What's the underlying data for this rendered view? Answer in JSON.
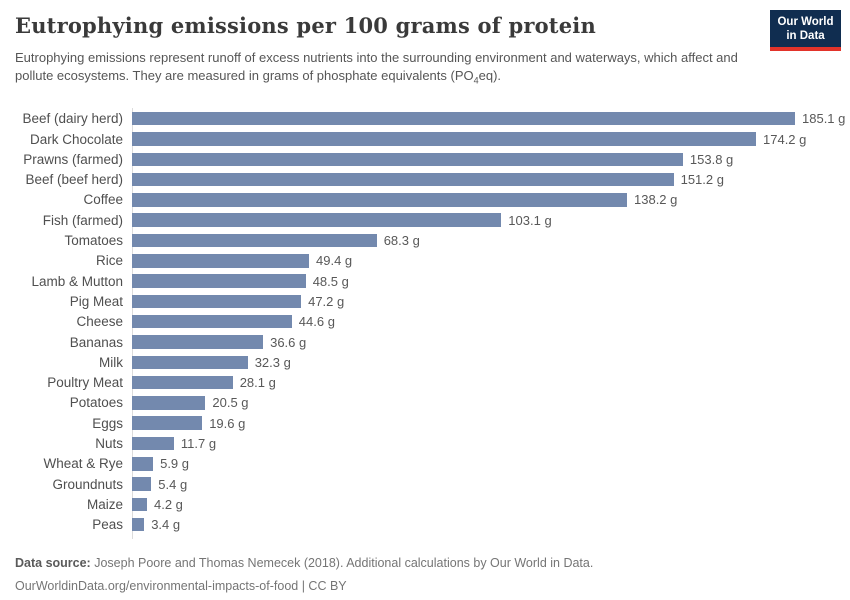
{
  "header": {
    "title": "Eutrophying emissions per 100 grams of protein",
    "subtitle_parts": {
      "pre": "Eutrophying emissions represent runoff of excess nutrients into the surrounding environment and waterways, which affect and pollute ecosystems. They are measured in grams of phosphate equivalents (PO",
      "sub": "4",
      "post": "eq)."
    },
    "logo": {
      "line1": "Our World",
      "line2": "in Data"
    }
  },
  "chart_data": {
    "type": "bar",
    "orientation": "horizontal",
    "title": "Eutrophying emissions per 100 grams of protein",
    "unit": "g",
    "categories": [
      "Beef (dairy herd)",
      "Dark Chocolate",
      "Prawns (farmed)",
      "Beef (beef herd)",
      "Coffee",
      "Fish (farmed)",
      "Tomatoes",
      "Rice",
      "Lamb & Mutton",
      "Pig Meat",
      "Cheese",
      "Bananas",
      "Milk",
      "Poultry Meat",
      "Potatoes",
      "Eggs",
      "Nuts",
      "Wheat & Rye",
      "Groundnuts",
      "Maize",
      "Peas"
    ],
    "values": [
      185.1,
      174.2,
      153.8,
      151.2,
      138.2,
      103.1,
      68.3,
      49.4,
      48.5,
      47.2,
      44.6,
      36.6,
      32.3,
      28.1,
      20.5,
      19.6,
      11.7,
      5.9,
      5.4,
      4.2,
      3.4
    ],
    "value_labels": [
      "185.1 g",
      "174.2 g",
      "153.8 g",
      "151.2 g",
      "138.2 g",
      "103.1 g",
      "68.3 g",
      "49.4 g",
      "48.5 g",
      "47.2 g",
      "44.6 g",
      "36.6 g",
      "32.3 g",
      "28.1 g",
      "20.5 g",
      "19.6 g",
      "11.7 g",
      "5.9 g",
      "5.4 g",
      "4.2 g",
      "3.4 g"
    ],
    "xlim": [
      0,
      185.1
    ],
    "grid": false,
    "legend": "none",
    "bar_color": "#7389ae"
  },
  "footer": {
    "source_label": "Data source:",
    "source_text": " Joseph Poore and Thomas Nemecek (2018). Additional calculations by Our World in Data.",
    "credit_line": "OurWorldinData.org/environmental-impacts-of-food | CC BY"
  },
  "colors": {
    "bar": "#7389ae",
    "axis_line": "#dcdcdc",
    "title_text": "#3a3a3a",
    "subtitle_text": "#565656",
    "label_text": "#4f4f4f",
    "footer_text": "#757575",
    "logo_background": "#102d50",
    "logo_stripe": "#e2332a",
    "background": "#ffffff"
  }
}
